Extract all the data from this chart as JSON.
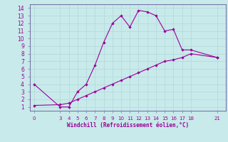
{
  "xlabel": "Windchill (Refroidissement éolien,°C)",
  "background_color": "#c8eaea",
  "line_color": "#990099",
  "grid_color": "#b8dcdc",
  "spine_color": "#7777aa",
  "line1_x": [
    0,
    3,
    4,
    5,
    6,
    7,
    8,
    9,
    10,
    11,
    12,
    13,
    14,
    15,
    16,
    17,
    18,
    21
  ],
  "line1_y": [
    4,
    1,
    1,
    3,
    4,
    6.5,
    9.5,
    12,
    13,
    11.5,
    13.7,
    13.5,
    13,
    11,
    11.2,
    8.5,
    8.5,
    7.5
  ],
  "line2_x": [
    0,
    3,
    4,
    5,
    6,
    7,
    8,
    9,
    10,
    11,
    12,
    13,
    14,
    15,
    16,
    17,
    18,
    21
  ],
  "line2_y": [
    1.2,
    1.3,
    1.5,
    2.0,
    2.5,
    3.0,
    3.5,
    4.0,
    4.5,
    5.0,
    5.5,
    6.0,
    6.5,
    7.0,
    7.2,
    7.5,
    8.0,
    7.5
  ],
  "xlim": [
    -0.5,
    22
  ],
  "ylim": [
    0.5,
    14.5
  ],
  "xticks": [
    0,
    3,
    4,
    5,
    6,
    7,
    8,
    9,
    10,
    11,
    12,
    13,
    14,
    15,
    16,
    17,
    18,
    21
  ],
  "yticks": [
    1,
    2,
    3,
    4,
    5,
    6,
    7,
    8,
    9,
    10,
    11,
    12,
    13,
    14
  ]
}
